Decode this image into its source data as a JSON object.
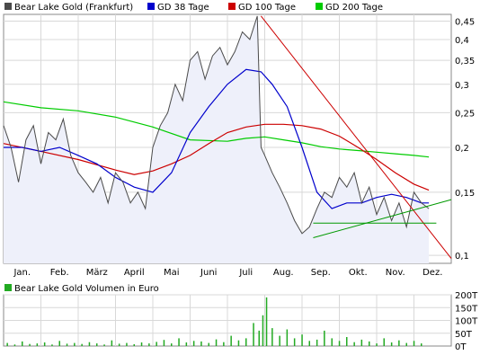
{
  "chart_data": [
    {
      "type": "line",
      "y_scale": "log",
      "ylim": [
        0.095,
        0.47
      ],
      "grid": true,
      "legend_position": "top",
      "x_tick_labels": [
        "Jan.",
        "Feb.",
        "März",
        "April",
        "Mai",
        "Juni",
        "Juli",
        "Aug.",
        "Sep.",
        "Okt.",
        "Nov.",
        "Dez."
      ],
      "y_ticks": [
        0.1,
        0.15,
        0.2,
        0.25,
        0.3,
        0.35,
        0.4,
        0.45
      ],
      "y_tick_labels": [
        "0,1",
        "0,15",
        "0,2",
        "0,25",
        "0,3",
        "0,35",
        "0,4",
        "0,45"
      ],
      "series": [
        {
          "name": "Bear Lake Gold (Frankfurt)",
          "color": "#4a4a4a",
          "fill": "#eef0fa",
          "x": [
            0.0,
            0.2,
            0.4,
            0.6,
            0.8,
            1.0,
            1.2,
            1.4,
            1.6,
            1.8,
            2.0,
            2.2,
            2.4,
            2.6,
            2.8,
            3.0,
            3.2,
            3.4,
            3.6,
            3.8,
            4.0,
            4.2,
            4.4,
            4.6,
            4.8,
            5.0,
            5.2,
            5.4,
            5.6,
            5.8,
            6.0,
            6.2,
            6.4,
            6.6,
            6.8,
            6.9,
            7.0,
            7.2,
            7.4,
            7.6,
            7.8,
            8.0,
            8.2,
            8.4,
            8.6,
            8.8,
            9.0,
            9.2,
            9.4,
            9.6,
            9.8,
            10.0,
            10.2,
            10.4,
            10.6,
            10.8,
            11.0,
            11.2,
            11.4
          ],
          "values": [
            0.23,
            0.2,
            0.16,
            0.21,
            0.23,
            0.18,
            0.22,
            0.21,
            0.24,
            0.19,
            0.17,
            0.16,
            0.15,
            0.165,
            0.14,
            0.17,
            0.16,
            0.14,
            0.15,
            0.135,
            0.2,
            0.23,
            0.25,
            0.3,
            0.27,
            0.35,
            0.37,
            0.31,
            0.36,
            0.38,
            0.34,
            0.37,
            0.42,
            0.4,
            0.465,
            0.2,
            0.19,
            0.17,
            0.155,
            0.14,
            0.125,
            0.115,
            0.12,
            0.135,
            0.15,
            0.145,
            0.165,
            0.155,
            0.17,
            0.14,
            0.155,
            0.13,
            0.145,
            0.125,
            0.14,
            0.12,
            0.15,
            0.14,
            0.135
          ]
        },
        {
          "name": "GD 38 Tage",
          "color": "#0000cc",
          "x": [
            0.0,
            0.5,
            1.0,
            1.5,
            2.0,
            2.5,
            3.0,
            3.5,
            4.0,
            4.5,
            5.0,
            5.5,
            6.0,
            6.5,
            6.9,
            7.2,
            7.6,
            8.0,
            8.4,
            8.8,
            9.2,
            9.6,
            10.0,
            10.4,
            10.8,
            11.2,
            11.4
          ],
          "values": [
            0.2,
            0.2,
            0.195,
            0.2,
            0.19,
            0.18,
            0.165,
            0.155,
            0.15,
            0.17,
            0.22,
            0.26,
            0.3,
            0.33,
            0.325,
            0.3,
            0.26,
            0.2,
            0.15,
            0.135,
            0.14,
            0.14,
            0.145,
            0.148,
            0.145,
            0.14,
            0.14
          ]
        },
        {
          "name": "GD 100 Tage",
          "color": "#cc0000",
          "x": [
            0.0,
            1.0,
            2.0,
            3.0,
            3.5,
            4.0,
            4.5,
            5.0,
            5.5,
            6.0,
            6.5,
            7.0,
            7.5,
            8.0,
            8.5,
            9.0,
            9.5,
            10.0,
            10.5,
            11.0,
            11.4
          ],
          "values": [
            0.205,
            0.195,
            0.185,
            0.173,
            0.168,
            0.172,
            0.18,
            0.19,
            0.205,
            0.22,
            0.228,
            0.232,
            0.232,
            0.23,
            0.225,
            0.215,
            0.2,
            0.185,
            0.17,
            0.158,
            0.152
          ]
        },
        {
          "name": "GD 200 Tage",
          "color": "#00cc00",
          "x": [
            0.0,
            1.0,
            2.0,
            3.0,
            4.0,
            5.0,
            6.0,
            6.5,
            7.0,
            7.5,
            8.0,
            8.5,
            9.0,
            9.5,
            10.0,
            10.5,
            11.0,
            11.4
          ],
          "values": [
            0.268,
            0.258,
            0.253,
            0.243,
            0.228,
            0.21,
            0.208,
            0.212,
            0.214,
            0.21,
            0.206,
            0.201,
            0.198,
            0.196,
            0.194,
            0.192,
            0.19,
            0.188
          ]
        }
      ],
      "trendlines": [
        {
          "color": "#cc0000",
          "points": [
            [
              6.9,
              0.465
            ],
            [
              12.0,
              0.098
            ]
          ]
        },
        {
          "color": "#009900",
          "points": [
            [
              8.3,
              0.112
            ],
            [
              12.0,
              0.143
            ]
          ]
        },
        {
          "color": "#009900",
          "points": [
            [
              8.3,
              0.123
            ],
            [
              11.6,
              0.123
            ]
          ]
        }
      ]
    },
    {
      "type": "bar",
      "ylim": [
        0,
        200
      ],
      "y_tick_labels": [
        "0T",
        "50T",
        "100T",
        "150T",
        "200T"
      ],
      "y_ticks": [
        0,
        50,
        100,
        150,
        200
      ],
      "series": [
        {
          "name": "Bear Lake Gold Volumen in Euro",
          "color": "#22aa22"
        }
      ],
      "x": [
        0.1,
        0.3,
        0.5,
        0.7,
        0.9,
        1.1,
        1.3,
        1.5,
        1.7,
        1.9,
        2.1,
        2.3,
        2.5,
        2.7,
        2.9,
        3.1,
        3.3,
        3.5,
        3.7,
        3.9,
        4.1,
        4.3,
        4.5,
        4.7,
        4.9,
        5.1,
        5.3,
        5.5,
        5.7,
        5.9,
        6.1,
        6.3,
        6.5,
        6.7,
        6.85,
        6.95,
        7.05,
        7.2,
        7.4,
        7.6,
        7.8,
        8.0,
        8.2,
        8.4,
        8.6,
        8.8,
        9.0,
        9.2,
        9.4,
        9.6,
        9.8,
        10.0,
        10.2,
        10.4,
        10.6,
        10.8,
        11.0,
        11.2
      ],
      "values": [
        12,
        6,
        18,
        8,
        10,
        14,
        6,
        20,
        9,
        12,
        8,
        15,
        10,
        6,
        22,
        9,
        12,
        7,
        14,
        10,
        16,
        24,
        10,
        30,
        14,
        20,
        18,
        12,
        26,
        15,
        40,
        22,
        30,
        90,
        60,
        120,
        190,
        70,
        40,
        65,
        30,
        45,
        20,
        25,
        60,
        30,
        20,
        35,
        15,
        25,
        18,
        10,
        30,
        14,
        22,
        12,
        20,
        10
      ]
    }
  ]
}
